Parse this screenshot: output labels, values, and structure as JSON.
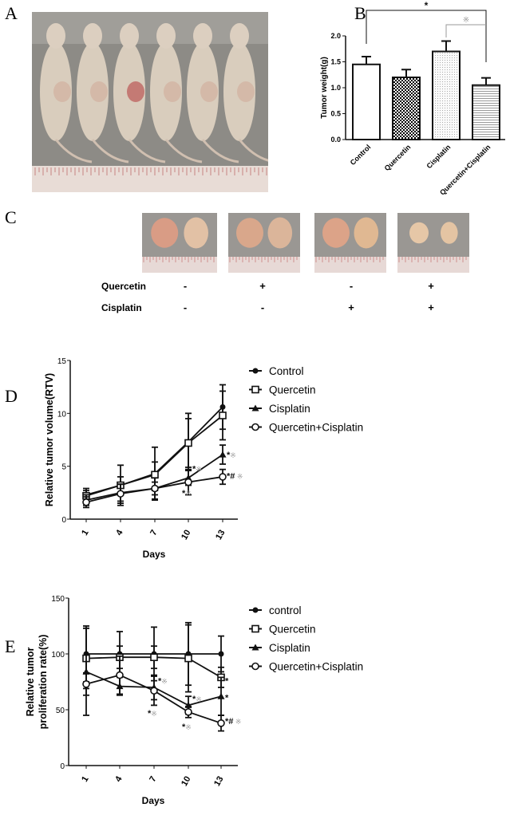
{
  "panels": {
    "a": "A",
    "b": "B",
    "c": "C",
    "d": "D",
    "e": "E"
  },
  "panel_c": {
    "rows": [
      {
        "label": "Quercetin",
        "marks": [
          "-",
          "+",
          "-",
          "+"
        ]
      },
      {
        "label": "Cisplatin",
        "marks": [
          "-",
          "-",
          "+",
          "+"
        ]
      }
    ]
  },
  "colors": {
    "ink": "#111111",
    "significance_grey": "#9a9a9a",
    "photo_background": "#8b8a86",
    "ruler": "#e6dcd6"
  },
  "chart_data": [
    {
      "id": "B",
      "type": "bar",
      "ylabel": "Tumor weight(g)",
      "xlabel": "",
      "categories": [
        "Control",
        "Quercetin",
        "Cisplatin",
        "Quercetin+Cisplatin"
      ],
      "values": [
        1.45,
        1.2,
        1.7,
        1.05
      ],
      "errors": [
        0.15,
        0.15,
        0.2,
        0.14
      ],
      "patterns": [
        "white",
        "checker",
        "dots",
        "horizontal-lines"
      ],
      "ylim": [
        0,
        2.0
      ],
      "yticks": [
        "0.0",
        "0.5",
        "1.0",
        "1.5",
        "2.0"
      ],
      "brackets": [
        {
          "from": "Control",
          "to": "Quercetin+Cisplatin",
          "label": "*",
          "color": "#111111"
        },
        {
          "from": "Cisplatin",
          "to": "Quercetin+Cisplatin",
          "label": "※",
          "color": "#9a9a9a"
        }
      ]
    },
    {
      "id": "D",
      "type": "line",
      "xlabel": "Days",
      "ylabel": "Relative tumor volume(RTV)",
      "x": [
        1,
        4,
        7,
        10,
        13
      ],
      "xticks": [
        "1",
        "4",
        "7",
        "10",
        "13"
      ],
      "ylim": [
        0,
        15
      ],
      "yticks": [
        "0",
        "5",
        "10",
        "15"
      ],
      "legend": "right",
      "series": [
        {
          "name": "Control",
          "marker": "filled-circle",
          "values": [
            2.3,
            3.2,
            4.3,
            7.3,
            10.6
          ],
          "errors": [
            0.6,
            1.9,
            2.5,
            2.7,
            2.1
          ]
        },
        {
          "name": "Quercetin",
          "marker": "open-square",
          "values": [
            2.2,
            3.2,
            4.2,
            7.2,
            9.8
          ],
          "errors": [
            0.5,
            0.8,
            1.2,
            2.3,
            2.3
          ]
        },
        {
          "name": "Cisplatin",
          "marker": "filled-triangle",
          "values": [
            1.8,
            2.5,
            2.9,
            3.9,
            6.1
          ],
          "errors": [
            0.5,
            0.8,
            0.6,
            0.7,
            0.9
          ]
        },
        {
          "name": "Quercetin+Cisplatin",
          "marker": "open-circle",
          "values": [
            1.6,
            2.4,
            2.9,
            3.5,
            4.0
          ],
          "errors": [
            0.5,
            0.9,
            1.0,
            1.2,
            0.7
          ]
        }
      ],
      "annotations": [
        {
          "x": 10,
          "y": 4.8,
          "parts": [
            {
              "t": "*",
              "grey": false
            },
            {
              "t": "※",
              "grey": true
            }
          ]
        },
        {
          "x": 10,
          "y": 2.5,
          "parts": [
            {
              "t": "*",
              "grey": false
            },
            {
              "t": "※",
              "grey": true
            }
          ],
          "below": true
        },
        {
          "x": 13,
          "y": 6.1,
          "parts": [
            {
              "t": "*",
              "grey": false
            },
            {
              "t": "※",
              "grey": true
            }
          ]
        },
        {
          "x": 13,
          "y": 4.1,
          "parts": [
            {
              "t": "*#",
              "grey": false
            },
            {
              "t": " ※",
              "grey": true
            }
          ]
        }
      ]
    },
    {
      "id": "E",
      "type": "line",
      "xlabel": "Days",
      "ylabel": [
        "Relative tumor",
        "proliferation rate(%)"
      ],
      "x": [
        1,
        4,
        7,
        10,
        13
      ],
      "xticks": [
        "1",
        "4",
        "7",
        "10",
        "13"
      ],
      "ylim": [
        0,
        150
      ],
      "yticks": [
        "0",
        "50",
        "100",
        "150"
      ],
      "legend": "right",
      "series": [
        {
          "name": "control",
          "marker": "filled-circle",
          "values": [
            100,
            100,
            100,
            100,
            100
          ],
          "errors": [
            25,
            20,
            24,
            28,
            16
          ]
        },
        {
          "name": "Quercetin",
          "marker": "open-square",
          "values": [
            96,
            97,
            97,
            96,
            79
          ],
          "errors": [
            27,
            10,
            10,
            30,
            9
          ]
        },
        {
          "name": "Cisplatin",
          "marker": "filled-triangle",
          "values": [
            84,
            71,
            70,
            54,
            62
          ],
          "errors": [
            39,
            8,
            11,
            8,
            17
          ]
        },
        {
          "name": "Quercetin+Cisplatin",
          "marker": "open-circle",
          "values": [
            73,
            81,
            67,
            48,
            38
          ],
          "errors": [
            10,
            17,
            13,
            5,
            7
          ]
        }
      ],
      "annotations": [
        {
          "x": 7,
          "y": 76,
          "parts": [
            {
              "t": "*",
              "grey": false
            },
            {
              "t": "※",
              "grey": true
            }
          ]
        },
        {
          "x": 7,
          "y": 47,
          "parts": [
            {
              "t": "*",
              "grey": false
            },
            {
              "t": "※",
              "grey": true
            }
          ],
          "below": true
        },
        {
          "x": 10,
          "y": 60,
          "parts": [
            {
              "t": "*",
              "grey": false
            },
            {
              "t": "※",
              "grey": true
            }
          ]
        },
        {
          "x": 10,
          "y": 35,
          "parts": [
            {
              "t": "*",
              "grey": false
            },
            {
              "t": "※",
              "grey": true
            }
          ],
          "below": true
        },
        {
          "x": 13,
          "y": 76,
          "parts": [
            {
              "t": "*",
              "grey": false
            }
          ]
        },
        {
          "x": 13,
          "y": 61,
          "parts": [
            {
              "t": "*",
              "grey": false
            }
          ]
        },
        {
          "x": 13,
          "y": 40,
          "parts": [
            {
              "t": "*#",
              "grey": false
            },
            {
              "t": " ※",
              "grey": true
            }
          ]
        }
      ]
    }
  ]
}
